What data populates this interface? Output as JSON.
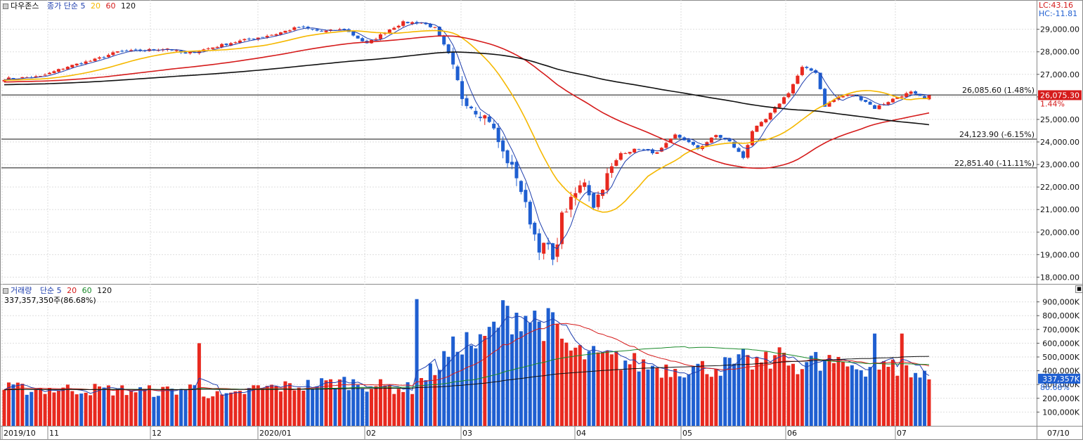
{
  "price_panel": {
    "title": "다우존스",
    "ma_label": "종가 단순",
    "ma_periods": [
      "5",
      "20",
      "60",
      "120"
    ],
    "ma_colors": [
      "#1f3fae",
      "#f5b800",
      "#d51b1b",
      "#111111"
    ],
    "lc_label": "LC:43.16",
    "hc_label": "HC:-11.81",
    "current_price_tag": "26,075.30",
    "current_change_tag": "1.44%",
    "hlines": [
      {
        "value": 26085.6,
        "label": "26,085.60 (1.48%)"
      },
      {
        "value": 24123.9,
        "label": "24,123.90 (-6.15%)"
      },
      {
        "value": 22851.4,
        "label": "22,851.40 (-11.11%)"
      }
    ]
  },
  "volume_panel": {
    "title": "거래량",
    "ma_label": "단순",
    "ma_periods": [
      "5",
      "20",
      "60",
      "120"
    ],
    "ma_colors": [
      "#1f3fae",
      "#d51b1b",
      "#1a8a2a",
      "#111111"
    ],
    "summary": "337,357,350주(86.68%)",
    "current_tag": "337,357K",
    "current_pct_tag": "86.68%"
  },
  "x_axis": {
    "labels": [
      "2019/10",
      "11",
      "12",
      "2020/01",
      "02",
      "03",
      "04",
      "05",
      "06",
      "07"
    ],
    "right_label": "07/10"
  },
  "colors": {
    "up": "#e8291f",
    "down": "#1f5fd1",
    "grid": "#dedede"
  },
  "chart_data": [
    {
      "type": "candlestick",
      "title": "다우존스",
      "ylim": [
        17700,
        30300
      ],
      "y_ticks": [
        "18,000.00",
        "19,000.00",
        "20,000.00",
        "21,000.00",
        "22,000.00",
        "23,000.00",
        "24,000.00",
        "25,000.00",
        "26,000.00",
        "27,000.00",
        "28,000.00",
        "29,000.00"
      ],
      "y_tick_values": [
        18000,
        19000,
        20000,
        21000,
        22000,
        23000,
        24000,
        25000,
        26000,
        27000,
        28000,
        29000
      ],
      "anchors": [
        [
          0,
          26800
        ],
        [
          8,
          26900
        ],
        [
          14,
          27350
        ],
        [
          20,
          27650
        ],
        [
          25,
          28000
        ],
        [
          30,
          28050
        ],
        [
          36,
          28150
        ],
        [
          40,
          27900
        ],
        [
          45,
          28150
        ],
        [
          50,
          28400
        ],
        [
          55,
          28600
        ],
        [
          60,
          28800
        ],
        [
          65,
          29100
        ],
        [
          70,
          28900
        ],
        [
          75,
          29000
        ],
        [
          80,
          28350
        ],
        [
          85,
          29000
        ],
        [
          88,
          29300
        ],
        [
          92,
          29300
        ],
        [
          95,
          29050
        ],
        [
          98,
          27900
        ],
        [
          101,
          26000
        ],
        [
          104,
          25400
        ],
        [
          107,
          25000
        ],
        [
          110,
          23500
        ],
        [
          113,
          22500
        ],
        [
          116,
          20500
        ],
        [
          118,
          19300
        ],
        [
          120,
          19400
        ],
        [
          121,
          18600
        ],
        [
          123,
          20700
        ],
        [
          126,
          21700
        ],
        [
          128,
          22300
        ],
        [
          130,
          21200
        ],
        [
          133,
          22500
        ],
        [
          136,
          23500
        ],
        [
          140,
          23700
        ],
        [
          144,
          23500
        ],
        [
          148,
          24300
        ],
        [
          150,
          24100
        ],
        [
          153,
          23700
        ],
        [
          157,
          24300
        ],
        [
          160,
          24000
        ],
        [
          163,
          23300
        ],
        [
          165,
          24500
        ],
        [
          168,
          25000
        ],
        [
          170,
          25500
        ],
        [
          173,
          26200
        ],
        [
          176,
          27300
        ],
        [
          179,
          27100
        ],
        [
          181,
          25600
        ],
        [
          184,
          26000
        ],
        [
          187,
          26100
        ],
        [
          190,
          25800
        ],
        [
          192,
          25500
        ],
        [
          194,
          25700
        ],
        [
          197,
          26000
        ],
        [
          200,
          26200
        ],
        [
          203,
          25900
        ],
        [
          204,
          26075
        ]
      ]
    },
    {
      "type": "bar",
      "title": "거래량",
      "ylim": [
        0,
        1000000
      ],
      "y_ticks": [
        "100,000K",
        "200,000K",
        "300,000K",
        "400,000K",
        "500,000K",
        "600,000K",
        "700,000K",
        "800,000K",
        "900,000K"
      ],
      "y_tick_values": [
        100000,
        200000,
        300000,
        400000,
        500000,
        600000,
        700000,
        800000,
        900000
      ],
      "anchors": [
        [
          0,
          270000
        ],
        [
          20,
          265000
        ],
        [
          35,
          250000
        ],
        [
          42,
          280000
        ],
        [
          46,
          220000
        ],
        [
          50,
          210000
        ],
        [
          55,
          270000
        ],
        [
          65,
          290000
        ],
        [
          75,
          320000
        ],
        [
          85,
          280000
        ],
        [
          90,
          270000
        ],
        [
          96,
          450000
        ],
        [
          101,
          620000
        ],
        [
          105,
          580000
        ],
        [
          110,
          800000
        ],
        [
          114,
          820000
        ],
        [
          118,
          760000
        ],
        [
          121,
          720000
        ],
        [
          125,
          540000
        ],
        [
          130,
          500000
        ],
        [
          135,
          480000
        ],
        [
          145,
          420000
        ],
        [
          155,
          420000
        ],
        [
          165,
          460000
        ],
        [
          175,
          450000
        ],
        [
          180,
          480000
        ],
        [
          185,
          440000
        ],
        [
          190,
          430000
        ],
        [
          197,
          420000
        ],
        [
          204,
          337357
        ]
      ],
      "spikes": [
        [
          43,
          600000
        ],
        [
          91,
          920000
        ],
        [
          163,
          560000
        ],
        [
          171,
          570000
        ],
        [
          180,
          400000
        ],
        [
          184,
          500000
        ],
        [
          187,
          440000
        ],
        [
          192,
          670000
        ],
        [
          198,
          670000
        ],
        [
          203,
          400000
        ]
      ]
    }
  ]
}
